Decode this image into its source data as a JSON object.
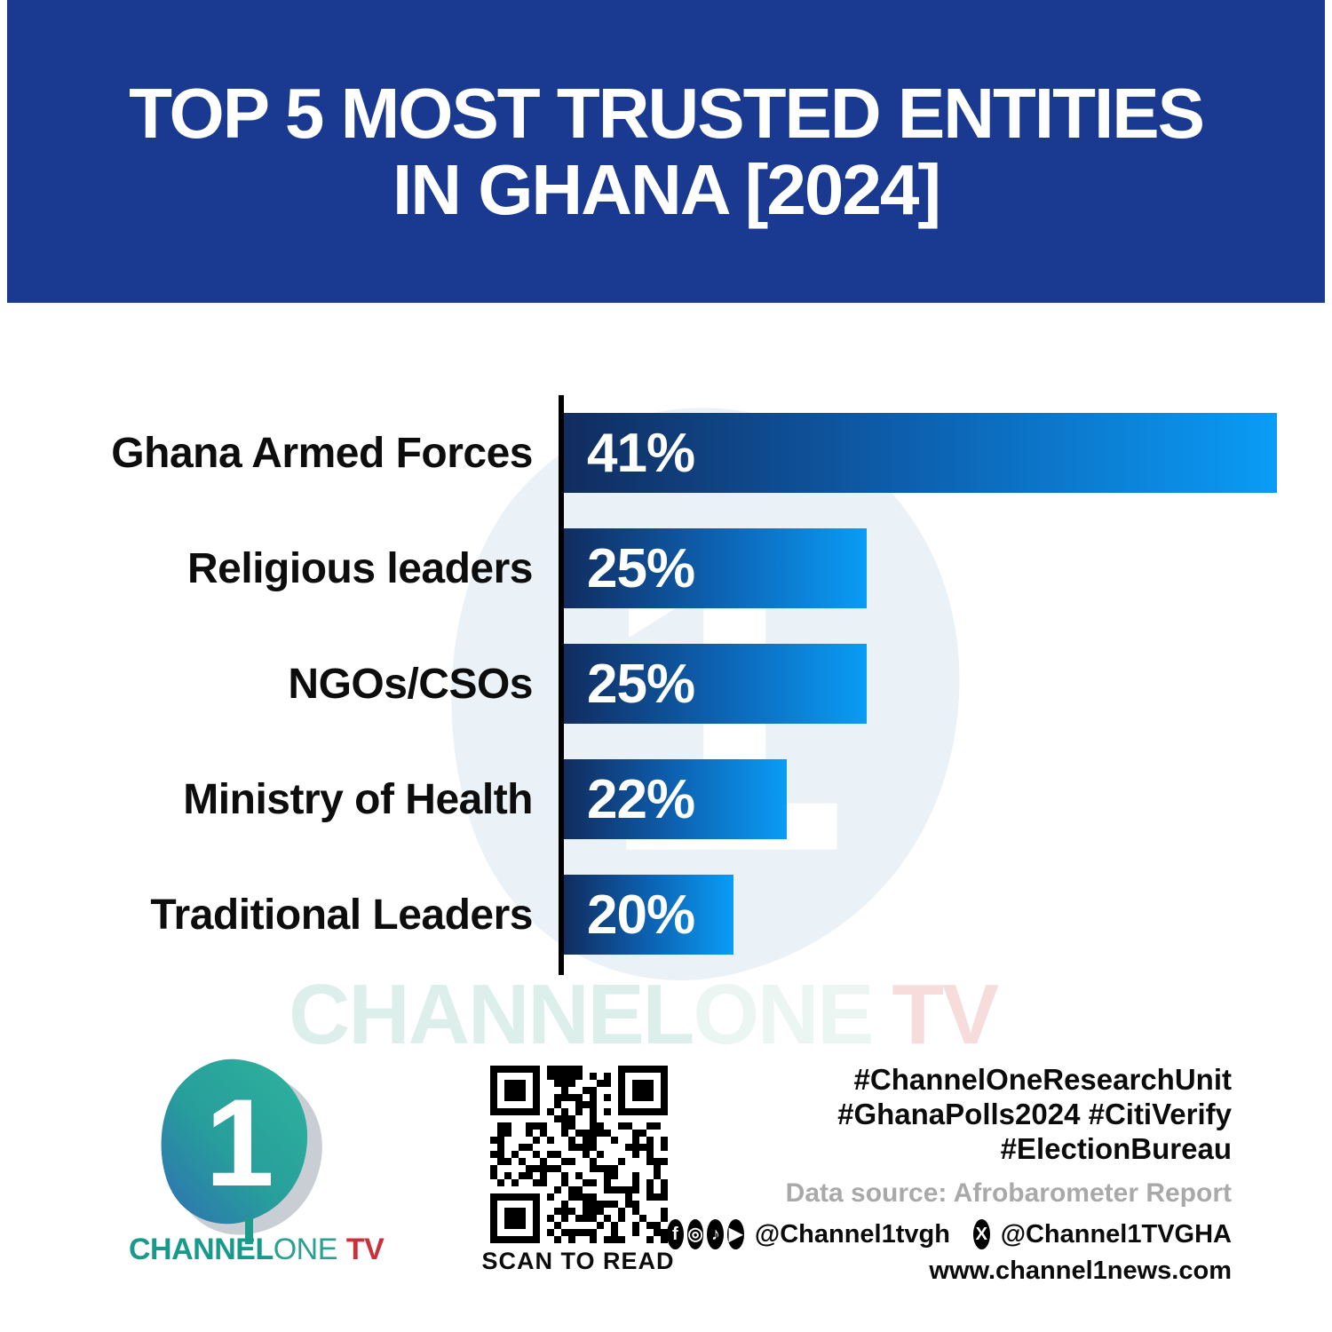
{
  "header": {
    "title_line1": "TOP 5 MOST TRUSTED ENTITIES",
    "title_line2": "IN GHANA [2024]",
    "bg_color": "#1a3a91"
  },
  "chart_data": {
    "type": "bar",
    "orientation": "horizontal",
    "title": "Top 5 most trusted entities in Ghana [2024]",
    "categories": [
      "Ghana Armed Forces",
      "Religious leaders",
      "NGOs/CSOs",
      "Ministry of Health",
      "Traditional Leaders"
    ],
    "values": [
      41,
      25,
      25,
      22,
      20
    ],
    "value_labels": [
      "41%",
      "25%",
      "25%",
      "22%",
      "20%"
    ],
    "bar_display_width_pct": [
      100,
      42.5,
      42.5,
      31.3,
      23.8
    ],
    "bar_gradient_start": "#112c5f",
    "bar_gradient_end": "#0a9cf6",
    "axis_color": "#000000",
    "label_color": "#0d0d0d",
    "value_label_color": "#ffffff",
    "grid": "off",
    "legend": "none"
  },
  "watermark": {
    "part1": "CHANNEL",
    "part2": "ONE",
    "part3": "TV"
  },
  "footer": {
    "logo": {
      "numeral": "1",
      "wordmark_part1": "CHANNEL",
      "wordmark_part2": "ONE",
      "wordmark_part3": "TV",
      "teal": "#179a8b",
      "red": "#c9323b"
    },
    "qr_caption": "SCAN TO READ",
    "hashtags": [
      "#ChannelOneResearchUnit",
      "#GhanaPolls2024 #CitiVerify",
      "#ElectionBureau"
    ],
    "data_source": "Data source: Afrobarometer Report",
    "social": {
      "icons_group1": [
        {
          "name": "facebook-icon",
          "glyph": "f"
        },
        {
          "name": "instagram-icon",
          "glyph": "◎"
        },
        {
          "name": "tiktok-icon",
          "glyph": "♪"
        },
        {
          "name": "youtube-icon",
          "glyph": "▶"
        }
      ],
      "handle1": "@Channel1tvgh",
      "icon_x": {
        "name": "x-icon",
        "glyph": "X"
      },
      "handle2": "@Channel1TVGHA"
    },
    "website": "www.channel1news.com"
  }
}
